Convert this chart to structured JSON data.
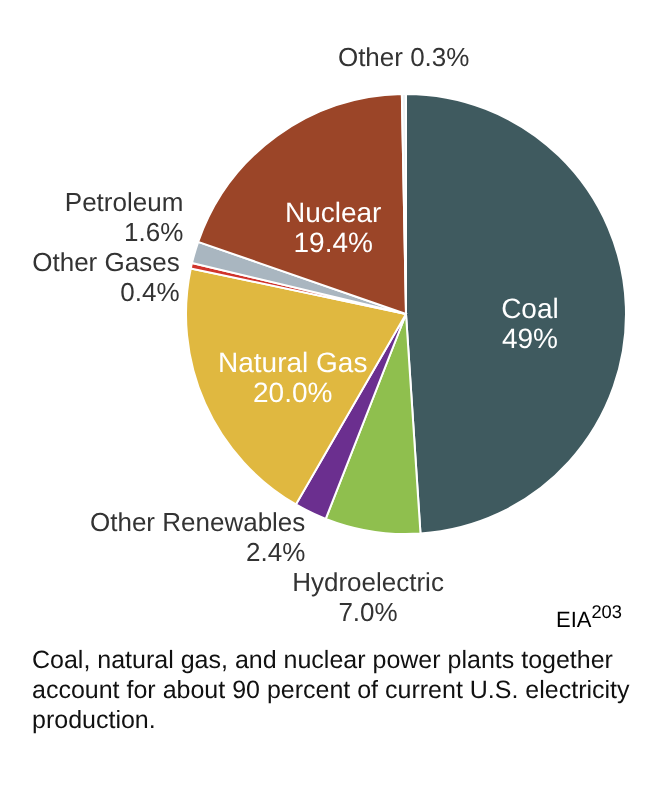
{
  "chart_data": {
    "type": "pie",
    "categories": [
      "Coal",
      "Hydroelectric",
      "Other Renewables",
      "Natural Gas",
      "Other Gases",
      "Petroleum",
      "Nuclear",
      "Other"
    ],
    "values": [
      49,
      7.0,
      2.4,
      20.0,
      0.4,
      1.6,
      19.4,
      0.3
    ],
    "value_labels": [
      "49%",
      "7.0%",
      "2.4%",
      "20.0%",
      "0.4%",
      "1.6%",
      "19.4%",
      "0.3%"
    ],
    "colors": [
      "#3f5a5f",
      "#8fbf4e",
      "#6b2f8f",
      "#e0b840",
      "#d0342c",
      "#a9b6c0",
      "#9b4528",
      "#eef2f4"
    ],
    "annotations": [
      "EIA$^{203}$",
      "Coal, natural gas, and nuclear power plants together account for about 90 percent of current U.S. electricity production."
    ]
  }
}
